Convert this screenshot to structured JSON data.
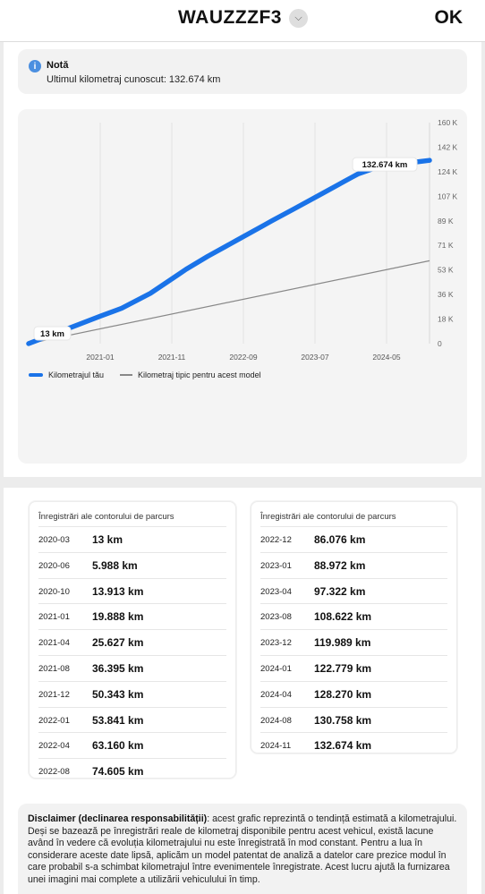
{
  "header": {
    "title": "WAUZZZF3",
    "ok_label": "OK"
  },
  "note": {
    "title": "Notă",
    "text": "Ultimul kilometraj cunoscut: 132.674 km"
  },
  "chart_data": {
    "type": "line",
    "x_ticks": [
      "2021-01",
      "2021-11",
      "2022-09",
      "2023-07",
      "2024-05"
    ],
    "y_ticks": [
      "0",
      "18 K",
      "36 K",
      "53 K",
      "71 K",
      "89 K",
      "107 K",
      "124 K",
      "142 K",
      "160 K"
    ],
    "ylim": [
      0,
      160000
    ],
    "y_axis_position": "right",
    "grid": "vertical",
    "legend_position": "bottom-left",
    "series": [
      {
        "name": "Kilometrajul tău",
        "color": "#1a73e8",
        "points": [
          [
            "2020-03",
            13
          ],
          [
            "2020-06",
            5988
          ],
          [
            "2020-10",
            13913
          ],
          [
            "2021-01",
            19888
          ],
          [
            "2021-04",
            25627
          ],
          [
            "2021-08",
            36395
          ],
          [
            "2021-12",
            50343
          ],
          [
            "2022-01",
            53841
          ],
          [
            "2022-04",
            63160
          ],
          [
            "2022-08",
            74605
          ],
          [
            "2022-12",
            86076
          ],
          [
            "2023-01",
            88972
          ],
          [
            "2023-04",
            97322
          ],
          [
            "2023-08",
            108622
          ],
          [
            "2023-12",
            119989
          ],
          [
            "2024-01",
            122779
          ],
          [
            "2024-04",
            128270
          ],
          [
            "2024-08",
            130758
          ],
          [
            "2024-11",
            132674
          ]
        ]
      },
      {
        "name": "Kilometraj tipic pentru acest model",
        "color": "#888888",
        "points": [
          [
            "2020-03",
            0
          ],
          [
            "2024-11",
            60000
          ]
        ]
      }
    ],
    "annotations": [
      {
        "date": "2020-03",
        "value": 13,
        "label": "13 km"
      },
      {
        "date": "2024-11",
        "value": 132674,
        "label": "132.674 km"
      }
    ]
  },
  "legend": {
    "yours": "Kilometrajul tău",
    "typical": "Kilometraj tipic pentru acest model"
  },
  "records_heading": "Înregistrări ale contorului de parcurs",
  "records_left": [
    {
      "date": "2020-03",
      "km": "13 km"
    },
    {
      "date": "2020-06",
      "km": "5.988 km"
    },
    {
      "date": "2020-10",
      "km": "13.913 km"
    },
    {
      "date": "2021-01",
      "km": "19.888 km"
    },
    {
      "date": "2021-04",
      "km": "25.627 km"
    },
    {
      "date": "2021-08",
      "km": "36.395 km"
    },
    {
      "date": "2021-12",
      "km": "50.343 km"
    },
    {
      "date": "2022-01",
      "km": "53.841 km"
    },
    {
      "date": "2022-04",
      "km": "63.160 km"
    },
    {
      "date": "2022-08",
      "km": "74.605 km"
    }
  ],
  "records_right": [
    {
      "date": "2022-12",
      "km": "86.076 km"
    },
    {
      "date": "2023-01",
      "km": "88.972 km"
    },
    {
      "date": "2023-04",
      "km": "97.322 km"
    },
    {
      "date": "2023-08",
      "km": "108.622 km"
    },
    {
      "date": "2023-12",
      "km": "119.989 km"
    },
    {
      "date": "2024-01",
      "km": "122.779 km"
    },
    {
      "date": "2024-04",
      "km": "128.270 km"
    },
    {
      "date": "2024-08",
      "km": "130.758 km"
    },
    {
      "date": "2024-11",
      "km": "132.674 km"
    }
  ],
  "disclaimer": {
    "title": "Disclaimer (declinarea responsabilității)",
    "text": ": acest grafic reprezintă o tendință estimată a kilometrajului. Deși se bazează pe înregistrări reale de kilometraj disponibile pentru acest vehicul, există lacune având în vedere că evoluția kilometrajului nu este înregistrată în mod constant. Pentru a lua în considerare aceste date lipsă, aplicăm un model patentat de analiză a datelor care prezice modul în care probabil s-a schimbat kilometrajul între evenimentele înregistrate. Acest lucru ajută la furnizarea unei imagini mai complete a utilizării vehiculului în timp."
  }
}
